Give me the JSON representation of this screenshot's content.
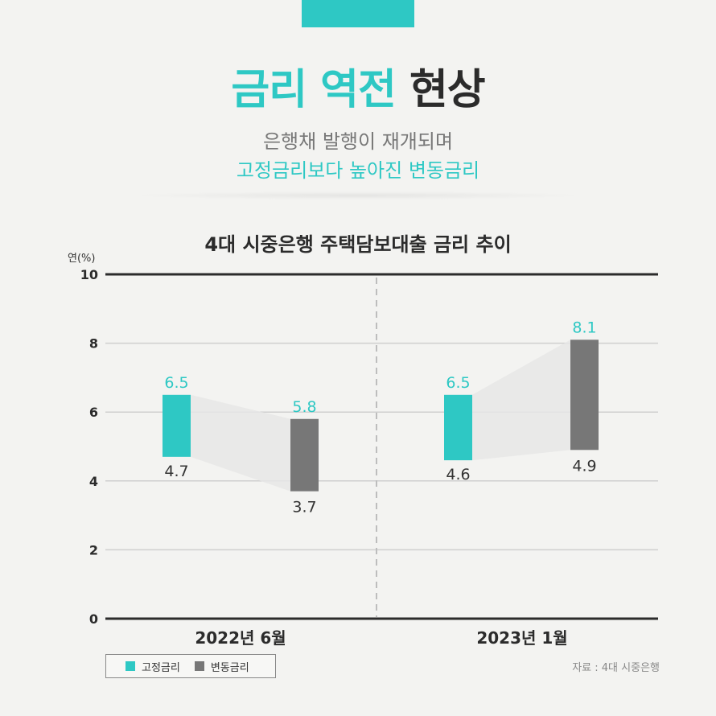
{
  "header": {
    "title_accent": "금리 역전",
    "title_dark": "현상",
    "subtitle_line1": "은행채 발행이 재개되며",
    "subtitle_line2": "고정금리보다 높아진 변동금리"
  },
  "source_note": "자료 : 4대 시중은행",
  "colors": {
    "fixed": "#2ec8c4",
    "variable": "#777777",
    "accent": "#2ec8c4"
  },
  "chart_data": {
    "type": "bar",
    "title": "4대 시중은행 주택담보대출 금리 추이",
    "ylabel": "연(%)",
    "ylim": [
      0,
      10
    ],
    "yticks": [
      "0",
      "2",
      "4",
      "6",
      "8",
      "10"
    ],
    "categories": [
      "2022년 6월",
      "2023년 1월"
    ],
    "series": [
      {
        "name": "고정금리",
        "low": [
          4.7,
          4.6
        ],
        "high": [
          6.5,
          6.5
        ],
        "low_labels": [
          "4.7",
          "4.6"
        ],
        "high_labels": [
          "6.5",
          "6.5"
        ]
      },
      {
        "name": "변동금리",
        "low": [
          3.7,
          4.9
        ],
        "high": [
          5.8,
          8.1
        ],
        "low_labels": [
          "3.7",
          "4.9"
        ],
        "high_labels": [
          "5.8",
          "8.1"
        ]
      }
    ]
  }
}
